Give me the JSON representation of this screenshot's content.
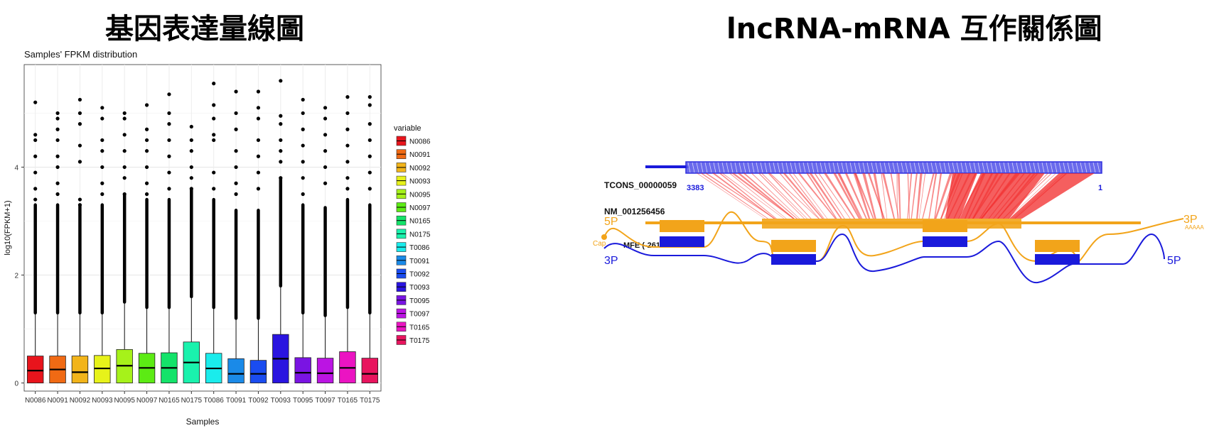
{
  "headings": {
    "left": "基因表達量線圖",
    "right": "lncRNA-mRNA 互作關係圖"
  },
  "chart_data": [
    {
      "type": "box",
      "title": "Samples' FPKM distribution",
      "xlabel": "Samples",
      "ylabel": "log10(FPKM+1)",
      "ylim": [
        -0.15,
        5.9
      ],
      "yticks": [
        0,
        2,
        4
      ],
      "grid": true,
      "legend_title": "variable",
      "legend_position": "right",
      "categories": [
        "N0086",
        "N0091",
        "N0092",
        "N0093",
        "N0095",
        "N0097",
        "N0165",
        "N0175",
        "T0086",
        "T0091",
        "T0092",
        "T0093",
        "T0095",
        "T0097",
        "T0165",
        "T0175"
      ],
      "series": [
        {
          "name": "N0086",
          "color": "#E8141C",
          "q1": 0.0,
          "median": 0.23,
          "q3": 0.5,
          "whisker_high": 1.3,
          "outliers_top": [
            5.2,
            4.6,
            4.5,
            4.2,
            3.9,
            3.6,
            3.4
          ]
        },
        {
          "name": "N0091",
          "color": "#F06A14",
          "q1": 0.0,
          "median": 0.25,
          "q3": 0.5,
          "whisker_high": 1.3,
          "outliers_top": [
            5.0,
            4.9,
            4.7,
            4.5,
            4.2,
            4.0,
            3.7,
            3.5
          ]
        },
        {
          "name": "N0092",
          "color": "#F2B41A",
          "q1": 0.0,
          "median": 0.2,
          "q3": 0.5,
          "whisker_high": 1.3,
          "outliers_top": [
            5.25,
            5.0,
            4.8,
            4.4,
            4.1,
            3.4,
            3.3
          ]
        },
        {
          "name": "N0093",
          "color": "#E7F21A",
          "q1": 0.0,
          "median": 0.27,
          "q3": 0.51,
          "whisker_high": 1.3,
          "outliers_top": [
            5.1,
            4.9,
            4.5,
            4.3,
            4.0,
            3.7,
            3.5
          ]
        },
        {
          "name": "N0095",
          "color": "#A6F21A",
          "q1": 0.0,
          "median": 0.32,
          "q3": 0.62,
          "whisker_high": 1.5,
          "outliers_top": [
            5.0,
            4.9,
            4.6,
            4.3,
            4.0,
            3.8,
            3.5
          ]
        },
        {
          "name": "N0097",
          "color": "#5CEB14",
          "q1": 0.0,
          "median": 0.28,
          "q3": 0.55,
          "whisker_high": 1.4,
          "outliers_top": [
            5.15,
            4.7,
            4.5,
            4.3,
            4.0,
            3.7,
            3.5
          ]
        },
        {
          "name": "N0165",
          "color": "#14E36A",
          "q1": 0.0,
          "median": 0.28,
          "q3": 0.56,
          "whisker_high": 1.4,
          "outliers_top": [
            5.35,
            5.0,
            4.8,
            4.5,
            4.2,
            3.9,
            3.6
          ]
        },
        {
          "name": "N0175",
          "color": "#1AF2AD",
          "q1": 0.0,
          "median": 0.38,
          "q3": 0.76,
          "whisker_high": 1.6,
          "outliers_top": [
            4.75,
            4.5,
            4.3,
            4.0,
            3.8,
            3.6
          ]
        },
        {
          "name": "T0086",
          "color": "#1AECEC",
          "q1": 0.0,
          "median": 0.27,
          "q3": 0.55,
          "whisker_high": 1.4,
          "outliers_top": [
            5.55,
            5.15,
            4.9,
            4.6,
            4.5,
            3.9,
            3.6
          ]
        },
        {
          "name": "T0091",
          "color": "#1A8AE8",
          "q1": 0.0,
          "median": 0.17,
          "q3": 0.45,
          "whisker_high": 1.2,
          "outliers_top": [
            5.4,
            5.0,
            4.7,
            4.3,
            4.0,
            3.7,
            3.5
          ]
        },
        {
          "name": "T0092",
          "color": "#1A4CF0",
          "q1": 0.0,
          "median": 0.17,
          "q3": 0.42,
          "whisker_high": 1.2,
          "outliers_top": [
            5.4,
            5.1,
            4.9,
            4.5,
            4.2,
            3.9,
            3.6
          ]
        },
        {
          "name": "T0093",
          "color": "#2A14E0",
          "q1": 0.0,
          "median": 0.45,
          "q3": 0.9,
          "whisker_high": 1.8,
          "outliers_top": [
            5.6,
            4.95,
            4.8,
            4.5,
            4.3,
            4.1,
            3.8
          ]
        },
        {
          "name": "T0095",
          "color": "#7A14E3",
          "q1": 0.0,
          "median": 0.19,
          "q3": 0.47,
          "whisker_high": 1.3,
          "outliers_top": [
            5.25,
            5.0,
            4.7,
            4.4,
            4.1,
            3.8,
            3.5
          ]
        },
        {
          "name": "T0097",
          "color": "#BB14E3",
          "q1": 0.0,
          "median": 0.18,
          "q3": 0.46,
          "whisker_high": 1.25,
          "outliers_top": [
            5.1,
            4.9,
            4.6,
            4.3,
            4.0,
            3.7
          ]
        },
        {
          "name": "T0165",
          "color": "#EB14C2",
          "q1": 0.0,
          "median": 0.28,
          "q3": 0.58,
          "whisker_high": 1.4,
          "outliers_top": [
            5.3,
            5.0,
            4.7,
            4.4,
            4.1,
            3.8,
            3.6
          ]
        },
        {
          "name": "T0175",
          "color": "#E8145E",
          "q1": 0.0,
          "median": 0.17,
          "q3": 0.46,
          "whisker_high": 1.3,
          "outliers_top": [
            5.3,
            5.15,
            4.8,
            4.5,
            4.2,
            3.9,
            3.6
          ]
        }
      ]
    },
    {
      "type": "diagram",
      "lncrna_id": "TCONS_00000059",
      "lncrna_start": "3383",
      "lncrna_end": "1",
      "mrna_id": "NM_001256456",
      "label_5p": "5P",
      "label_3p": "3P",
      "label_poly_a": "AAAAA",
      "label_cap": "Cap",
      "label_mfe": "MFE (-261",
      "label_3p_bottom": "3P",
      "label_5p_bottom": "5P",
      "colors": {
        "lncrna": "#1A1ADB",
        "mrna": "#F2A41A",
        "interaction": "#F22A2A"
      }
    }
  ]
}
